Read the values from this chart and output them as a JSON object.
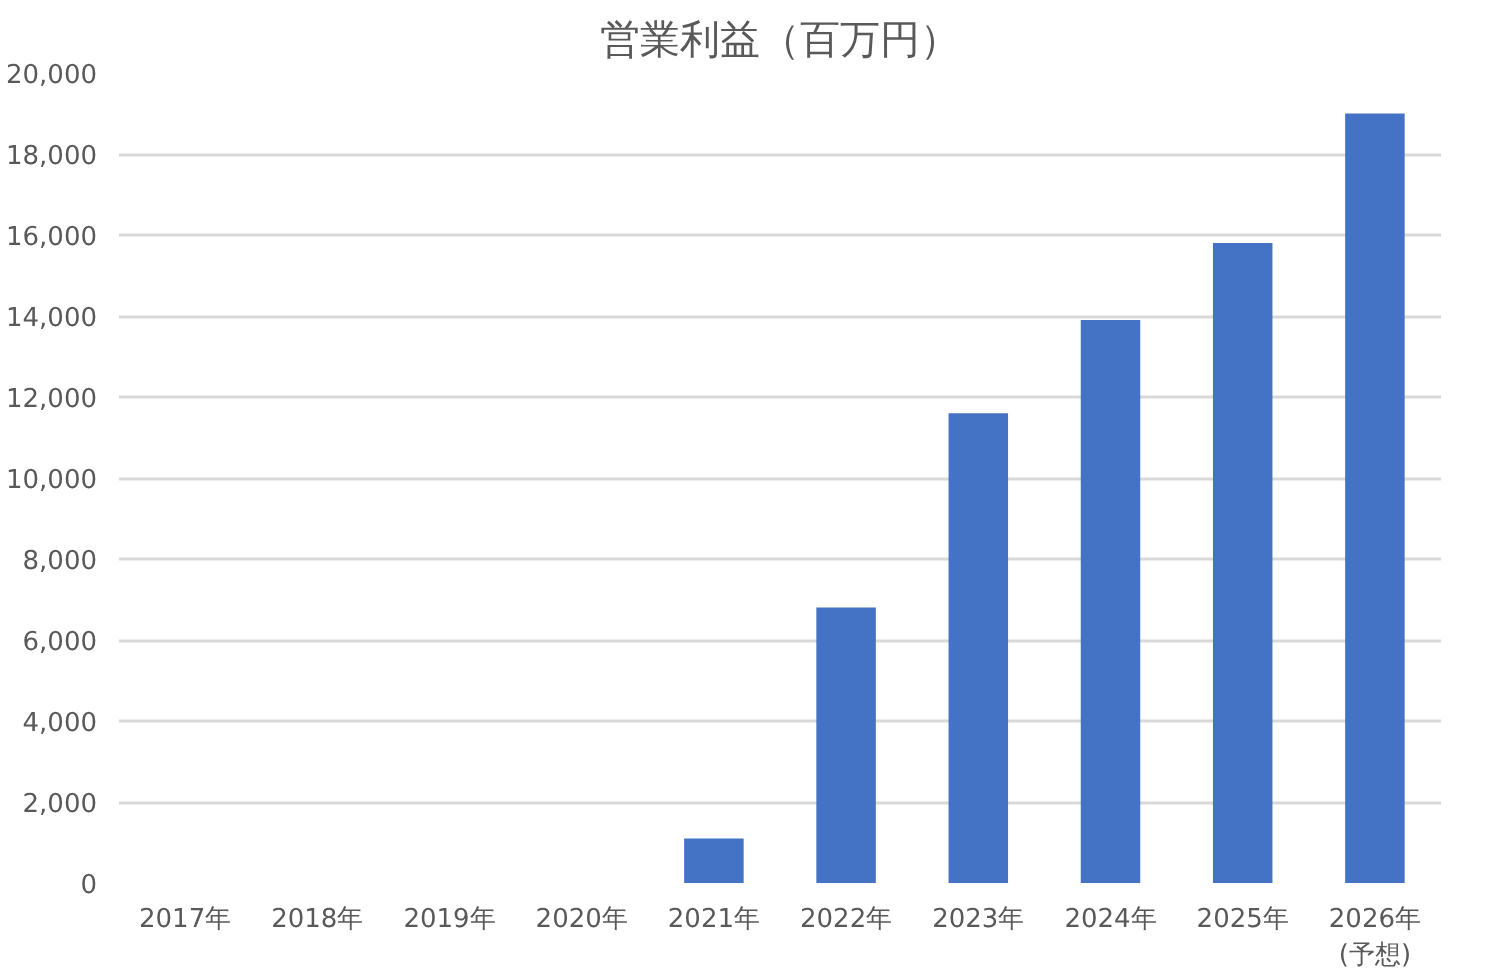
{
  "chart_data": {
    "type": "bar",
    "title": "営業利益（百万円）",
    "categories": [
      "2017年",
      "2018年",
      "2019年",
      "2020年",
      "2021年",
      "2022年",
      "2023年",
      "2024年",
      "2025年",
      "2026年\n(予想)"
    ],
    "values": [
      null,
      null,
      null,
      null,
      1100,
      6800,
      11600,
      13900,
      15800,
      19000
    ],
    "color": "#4472c4",
    "ylim": [
      0,
      20000
    ],
    "yticks": [
      {
        "value": 0,
        "label": "0"
      },
      {
        "value": 2000,
        "label": "2,000"
      },
      {
        "value": 4000,
        "label": "4,000"
      },
      {
        "value": 6000,
        "label": "6,000"
      },
      {
        "value": 8000,
        "label": "8,000"
      },
      {
        "value": 10000,
        "label": "10,000"
      },
      {
        "value": 12000,
        "label": "12,000"
      },
      {
        "value": 14000,
        "label": "14,000"
      },
      {
        "value": 16000,
        "label": "16,000"
      },
      {
        "value": 18000,
        "label": "18,000"
      },
      {
        "value": 20000,
        "label": "20,000"
      }
    ],
    "grid": "y"
  }
}
